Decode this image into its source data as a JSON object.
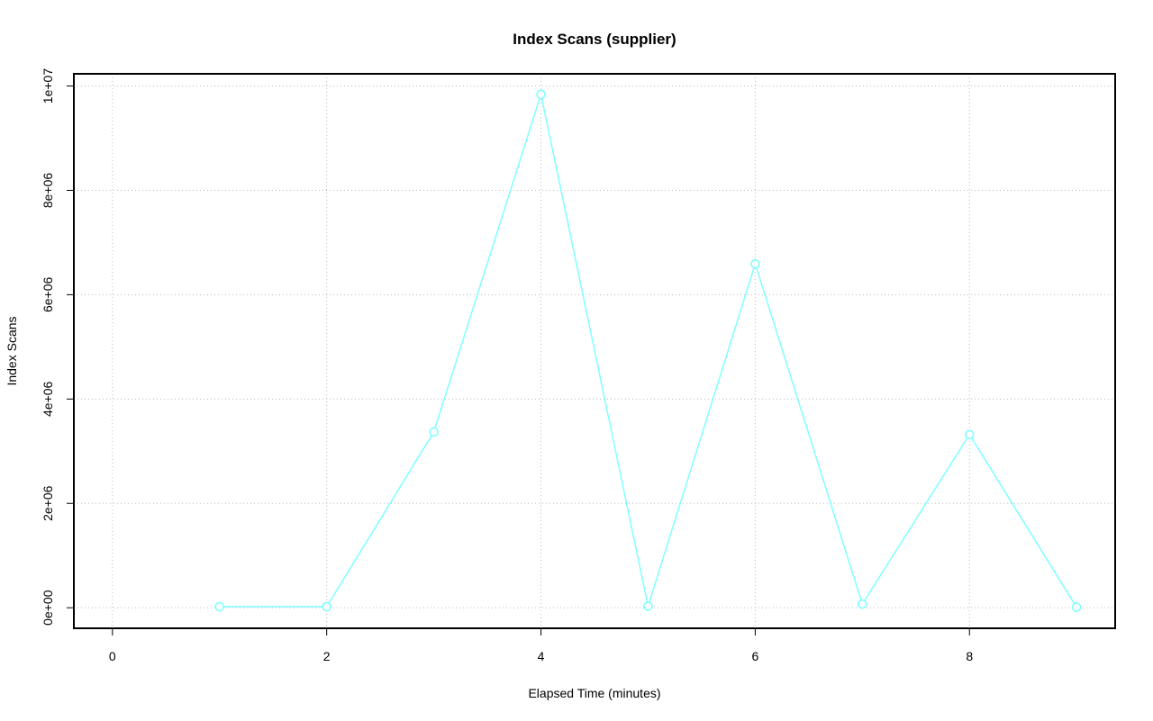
{
  "chart_data": {
    "type": "line",
    "title": "Index Scans (supplier)",
    "xlabel": "Elapsed Time (minutes)",
    "ylabel": "Index Scans",
    "x": [
      1,
      2,
      3,
      4,
      5,
      6,
      7,
      8,
      9
    ],
    "series": [
      {
        "values": [
          20000,
          20000,
          3370000,
          9840000,
          30000,
          6590000,
          70000,
          3320000,
          10000
        ],
        "color": "#80ffff"
      }
    ],
    "xlim": [
      0,
      9
    ],
    "ylim": [
      0,
      9840000
    ],
    "xticks": [
      0,
      2,
      4,
      6,
      8
    ],
    "xtick_labels": [
      "0",
      "2",
      "4",
      "6",
      "8"
    ],
    "yticks": [
      0,
      2000000,
      4000000,
      6000000,
      8000000,
      10000000
    ],
    "ytick_labels": [
      "0e+00",
      "2e+06",
      "4e+06",
      "6e+06",
      "8e+06",
      "1e+07"
    ],
    "grid": true,
    "marker": "open-circle"
  }
}
